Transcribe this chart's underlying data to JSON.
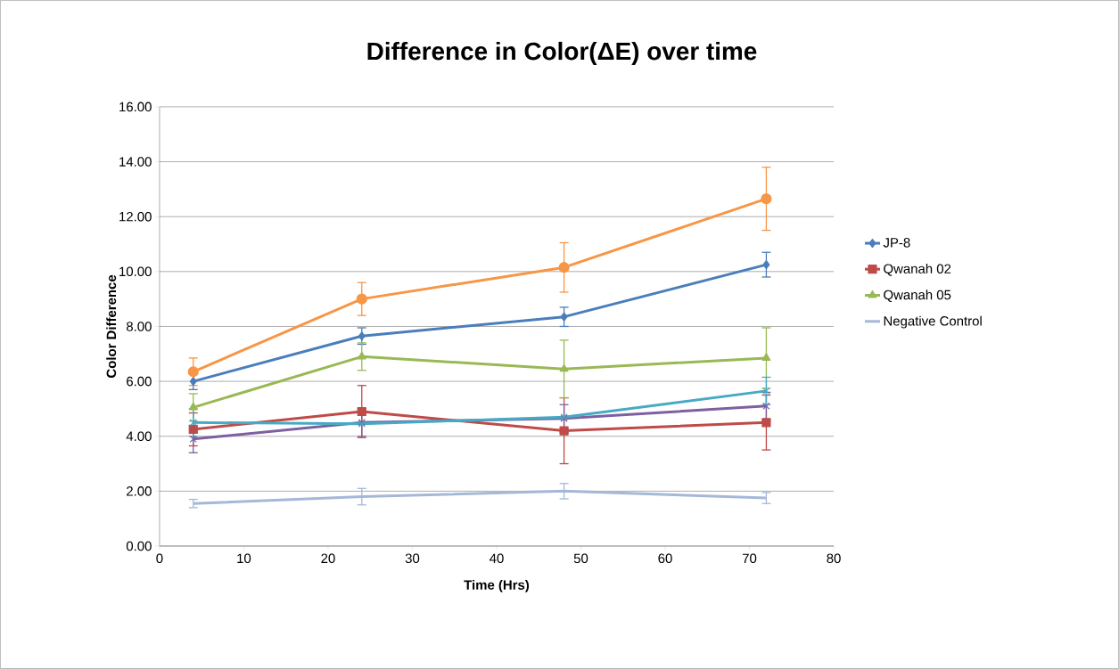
{
  "chart_data": {
    "type": "line",
    "title": "Difference in Color(ΔE) over time",
    "xlabel": "Time (Hrs)",
    "ylabel": "Color Difference",
    "x": [
      4,
      24,
      48,
      72
    ],
    "xlim": [
      0,
      80
    ],
    "xticks": [
      0,
      10,
      20,
      30,
      40,
      50,
      60,
      70,
      80
    ],
    "ylim": [
      0,
      16
    ],
    "yticks": [
      {
        "value": 0,
        "label": "0.00"
      },
      {
        "value": 2,
        "label": "2.00"
      },
      {
        "value": 4,
        "label": "4.00"
      },
      {
        "value": 6,
        "label": "6.00"
      },
      {
        "value": 8,
        "label": "8.00"
      },
      {
        "value": 10,
        "label": "10.00"
      },
      {
        "value": 12,
        "label": "12.00"
      },
      {
        "value": 14,
        "label": "14.00"
      },
      {
        "value": 16,
        "label": "16.00"
      }
    ],
    "grid": "y",
    "legend": "right",
    "series": [
      {
        "name": "JP-8",
        "color": "#4a7ebb",
        "marker": "diamond",
        "values": [
          6.0,
          7.65,
          8.35,
          10.25
        ],
        "errors": [
          0.3,
          0.3,
          0.35,
          0.45
        ]
      },
      {
        "name": "Qwanah 02",
        "color": "#be4b48",
        "marker": "square",
        "values": [
          4.25,
          4.9,
          4.2,
          4.5
        ],
        "errors": [
          0.6,
          0.95,
          1.2,
          1.0
        ]
      },
      {
        "name": "Qwanah 05",
        "color": "#98b954",
        "marker": "triangle",
        "values": [
          5.05,
          6.9,
          6.45,
          6.85
        ],
        "errors": [
          0.5,
          0.5,
          1.05,
          1.1
        ]
      },
      {
        "color": "#7d60a0",
        "marker": "cross",
        "values": [
          3.9,
          4.5,
          4.65,
          5.1
        ],
        "errors": [
          0.5,
          0.5,
          0.5,
          0.5
        ]
      },
      {
        "color": "#46aac5",
        "marker": "cross",
        "values": [
          4.5,
          4.45,
          4.7,
          5.65
        ],
        "errors": [
          0.5,
          null,
          null,
          0.5
        ]
      },
      {
        "color": "#f79646",
        "marker": "circle",
        "values": [
          6.35,
          9.0,
          10.15,
          12.65
        ],
        "errors": [
          0.5,
          0.6,
          0.9,
          1.15
        ]
      },
      {
        "name": "Negative Control",
        "color": "#a5b8d8",
        "marker": "none",
        "values": [
          1.55,
          1.8,
          2.0,
          1.75
        ],
        "errors": [
          0.15,
          0.3,
          0.28,
          0.2
        ]
      }
    ]
  }
}
